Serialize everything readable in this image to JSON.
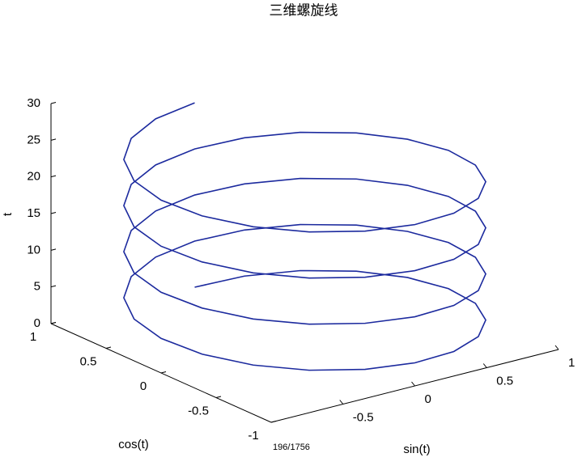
{
  "chart_data": {
    "type": "line3d",
    "title": "三维螺旋线",
    "xlabel": "sin(t)",
    "ylabel": "cos(t)",
    "zlabel": "t",
    "xlim": [
      -1,
      1
    ],
    "ylim": [
      -1,
      1
    ],
    "zlim": [
      0,
      30
    ],
    "xticks": [
      -0.5,
      0,
      0.5,
      1
    ],
    "yticks": [
      -1,
      -0.5,
      0,
      0.5,
      1
    ],
    "zticks": [
      0,
      5,
      10,
      15,
      20,
      25,
      30
    ],
    "grid": false,
    "series": [
      {
        "color": "#1c2a9e",
        "x": [
          0,
          0.309,
          0.588,
          0.809,
          0.951,
          1,
          0.951,
          0.809,
          0.588,
          0.309,
          0,
          -0.309,
          -0.588,
          -0.809,
          -0.951,
          -1,
          -0.951,
          -0.809,
          -0.588,
          -0.309,
          0,
          0.309,
          0.588,
          0.809,
          0.951,
          1,
          0.951,
          0.809,
          0.588,
          0.309,
          0,
          -0.309,
          -0.588,
          -0.809,
          -0.951,
          -1,
          -0.951,
          -0.809,
          -0.588,
          -0.309,
          0,
          0.309,
          0.588,
          0.809,
          0.951,
          1,
          0.951,
          0.809,
          0.588,
          0.309,
          0,
          -0.309,
          -0.588,
          -0.809,
          -0.951,
          -1,
          -0.951,
          -0.809,
          -0.588,
          -0.309,
          0,
          0.309,
          0.588,
          0.809,
          0.951,
          1,
          0.951,
          0.809,
          0.588,
          0.309,
          0,
          -0.309,
          -0.588,
          -0.809,
          -0.951,
          -1,
          -0.951,
          -0.809,
          -0.588,
          -0.309,
          0
        ],
        "y": [
          1,
          0.951,
          0.809,
          0.588,
          0.309,
          0,
          -0.309,
          -0.588,
          -0.809,
          -0.951,
          -1,
          -0.951,
          -0.809,
          -0.588,
          -0.309,
          0,
          0.309,
          0.588,
          0.809,
          0.951,
          1,
          0.951,
          0.809,
          0.588,
          0.309,
          0,
          -0.309,
          -0.588,
          -0.809,
          -0.951,
          -1,
          -0.951,
          -0.809,
          -0.588,
          -0.309,
          0,
          0.309,
          0.588,
          0.809,
          0.951,
          1,
          0.951,
          0.809,
          0.588,
          0.309,
          0,
          -0.309,
          -0.588,
          -0.809,
          -0.951,
          -1,
          -0.951,
          -0.809,
          -0.588,
          -0.309,
          0,
          0.309,
          0.588,
          0.809,
          0.951,
          1,
          0.951,
          0.809,
          0.588,
          0.309,
          0,
          -0.309,
          -0.588,
          -0.809,
          -0.951,
          -1,
          -0.951,
          -0.809,
          -0.588,
          -0.309,
          0,
          0.309,
          0.588,
          0.809,
          0.951,
          1
        ],
        "z": [
          0,
          0.314,
          0.628,
          0.942,
          1.257,
          1.571,
          1.885,
          2.199,
          2.513,
          2.827,
          3.142,
          3.456,
          3.77,
          4.084,
          4.398,
          4.712,
          5.027,
          5.341,
          5.655,
          5.969,
          6.283,
          6.597,
          6.912,
          7.226,
          7.54,
          7.854,
          8.168,
          8.482,
          8.796,
          9.111,
          9.425,
          9.739,
          10.053,
          10.367,
          10.681,
          10.996,
          11.31,
          11.624,
          11.938,
          12.252,
          12.566,
          12.881,
          13.195,
          13.509,
          13.823,
          14.137,
          14.451,
          14.765,
          15.08,
          15.394,
          15.708,
          16.022,
          16.336,
          16.65,
          16.965,
          17.279,
          17.593,
          17.907,
          18.221,
          18.535,
          18.85,
          19.164,
          19.478,
          19.792,
          20.106,
          20.42,
          20.735,
          21.049,
          21.363,
          21.677,
          21.991,
          22.305,
          22.619,
          22.934,
          23.248,
          23.562,
          23.876,
          24.19,
          24.504,
          24.819,
          25.133
        ]
      }
    ]
  },
  "page_counter": "196/1756"
}
